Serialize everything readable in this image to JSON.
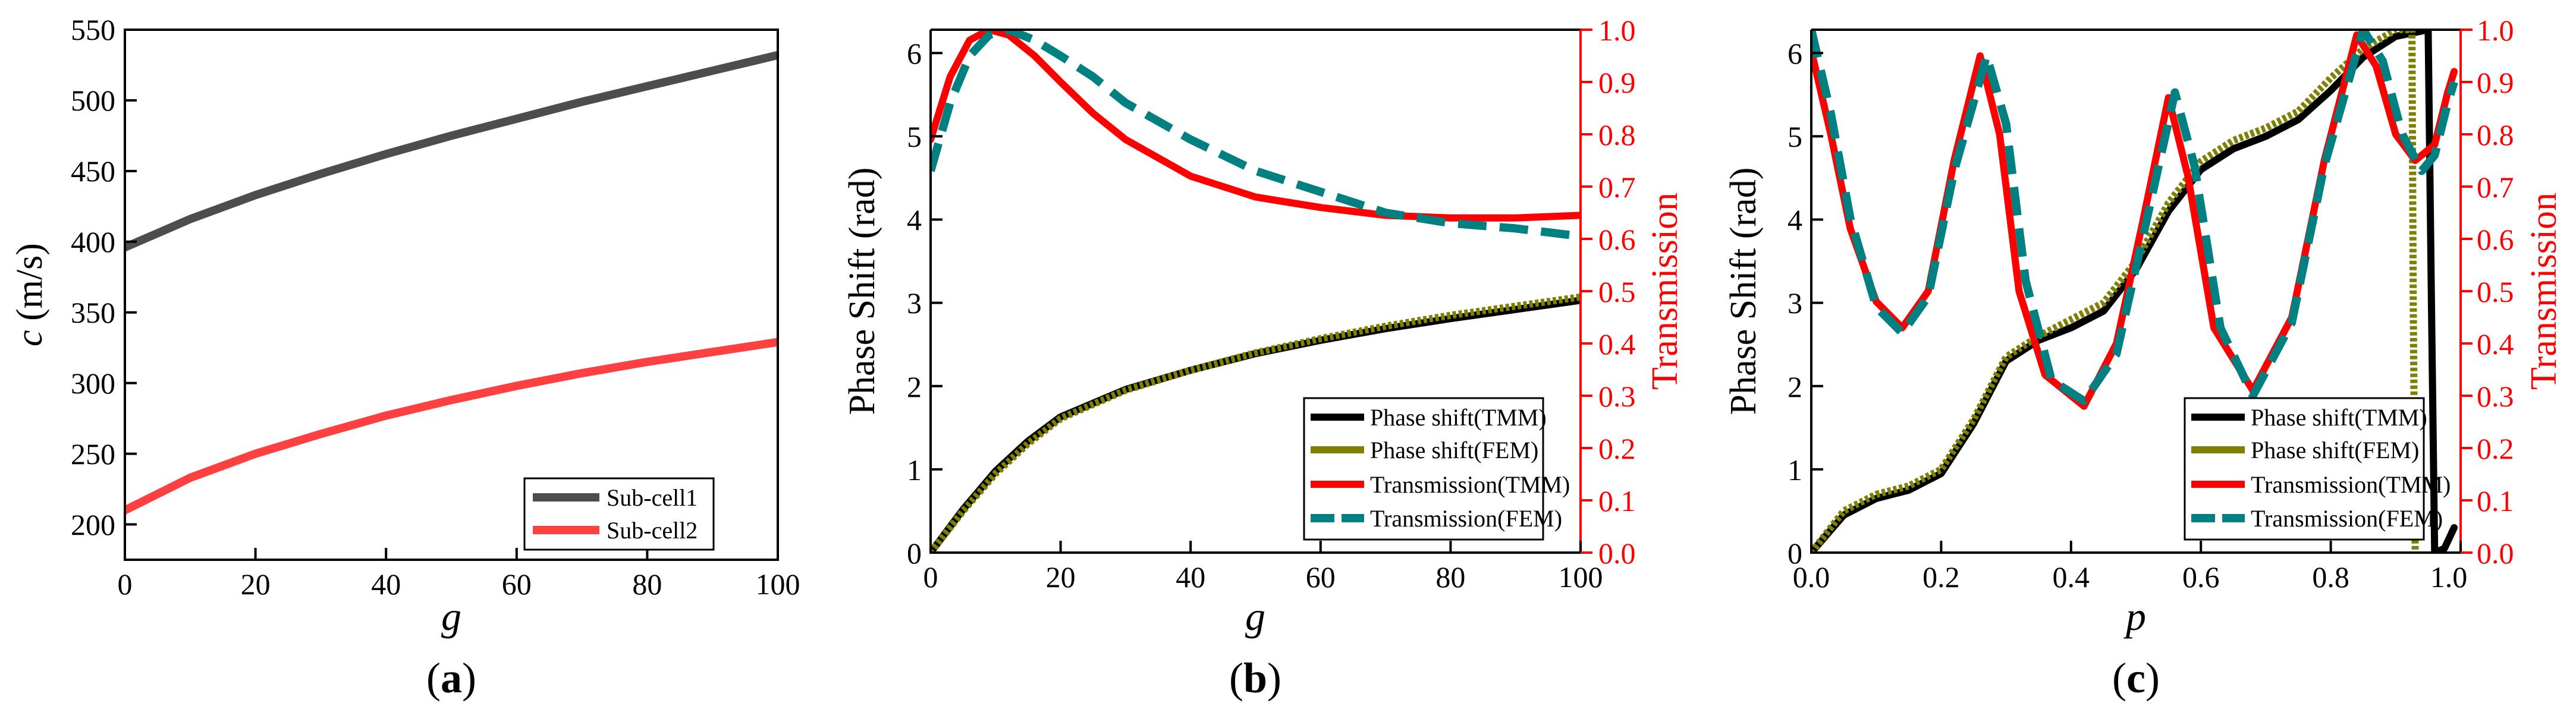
{
  "chart_data": [
    {
      "type": "line",
      "panel_label": "a",
      "xlabel": "g",
      "ylabel_var": "c",
      "ylabel_unit": " (m/s)",
      "xlim": [
        0,
        100
      ],
      "ylim": [
        175,
        550
      ],
      "x_ticks": [
        0,
        20,
        40,
        60,
        80,
        100
      ],
      "y_ticks": [
        200,
        250,
        300,
        350,
        400,
        450,
        500,
        550
      ],
      "legend_position": "bottom-right",
      "colors": {
        "sub_cell1": "#4d4d4d",
        "sub_cell2": "#ff4040"
      },
      "series": [
        {
          "name": "Sub-cell1",
          "x": [
            0,
            10,
            20,
            30,
            40,
            50,
            60,
            70,
            80,
            90,
            100
          ],
          "values": [
            396,
            416,
            433,
            448,
            462,
            475,
            487,
            499,
            510,
            521,
            532
          ]
        },
        {
          "name": "Sub-cell2",
          "x": [
            0,
            10,
            20,
            30,
            40,
            50,
            60,
            70,
            80,
            90,
            100
          ],
          "values": [
            210,
            233,
            250,
            264,
            277,
            288,
            298,
            307,
            315,
            322,
            329
          ]
        }
      ]
    },
    {
      "type": "line",
      "panel_label": "b",
      "xlabel": "g",
      "ylabel": "Phase Shift (rad)",
      "ylabel_right": "Transmission",
      "xlim": [
        0,
        100
      ],
      "ylim": [
        0,
        6.28
      ],
      "ylim_right": [
        0,
        1
      ],
      "x_ticks": [
        0,
        20,
        40,
        60,
        80,
        100
      ],
      "y_ticks": [
        0,
        1,
        2,
        3,
        4,
        5,
        6
      ],
      "y_ticks_right": [
        "0.0",
        "0.1",
        "0.2",
        "0.3",
        "0.4",
        "0.5",
        "0.6",
        "0.7",
        "0.8",
        "0.9",
        "1.0"
      ],
      "legend_position": "bottom-right",
      "colors": {
        "phase_tmm": "#000000",
        "phase_fem": "#808000",
        "trans_tmm": "#ff0000",
        "trans_fem": "#008080"
      },
      "series": [
        {
          "name": "Phase shift(TMM)",
          "axis": "left",
          "x": [
            0,
            5,
            10,
            15,
            20,
            30,
            40,
            50,
            60,
            70,
            80,
            90,
            100
          ],
          "values": [
            0.0,
            0.52,
            0.98,
            1.34,
            1.63,
            1.96,
            2.19,
            2.39,
            2.55,
            2.69,
            2.81,
            2.92,
            3.03
          ]
        },
        {
          "name": "Phase shift(FEM)",
          "axis": "left",
          "x": [
            0,
            5,
            10,
            15,
            20,
            30,
            40,
            50,
            60,
            70,
            80,
            90,
            100
          ],
          "values": [
            0.0,
            0.5,
            0.95,
            1.31,
            1.61,
            1.95,
            2.19,
            2.4,
            2.57,
            2.72,
            2.85,
            2.96,
            3.07
          ]
        },
        {
          "name": "Transmission(TMM)",
          "axis": "right",
          "x": [
            0,
            3,
            6,
            9,
            12,
            16,
            20,
            25,
            30,
            40,
            50,
            60,
            70,
            80,
            90,
            100
          ],
          "values": [
            0.79,
            0.91,
            0.98,
            1.0,
            0.99,
            0.95,
            0.9,
            0.84,
            0.79,
            0.72,
            0.68,
            0.66,
            0.645,
            0.64,
            0.64,
            0.645
          ]
        },
        {
          "name": "Transmission(FEM)",
          "axis": "right",
          "x": [
            0,
            3,
            6,
            9,
            12,
            16,
            20,
            25,
            30,
            40,
            50,
            60,
            70,
            80,
            90,
            100
          ],
          "values": [
            0.73,
            0.86,
            0.95,
            0.99,
            1.0,
            0.98,
            0.95,
            0.91,
            0.86,
            0.79,
            0.73,
            0.69,
            0.65,
            0.63,
            0.62,
            0.605
          ]
        }
      ]
    },
    {
      "type": "line",
      "panel_label": "c",
      "xlabel": "p",
      "ylabel": "Phase Shift (rad)",
      "ylabel_right": "Transmission",
      "xlim": [
        0,
        1
      ],
      "ylim": [
        0,
        6.28
      ],
      "ylim_right": [
        0,
        1
      ],
      "x_ticks": [
        "0.0",
        "0.2",
        "0.4",
        "0.6",
        "0.8",
        "1.0"
      ],
      "y_ticks": [
        0,
        1,
        2,
        3,
        4,
        5,
        6
      ],
      "y_ticks_right": [
        "0.0",
        "0.1",
        "0.2",
        "0.3",
        "0.4",
        "0.5",
        "0.6",
        "0.7",
        "0.8",
        "0.9",
        "1.0"
      ],
      "legend_position": "bottom-right",
      "colors": {
        "phase_tmm": "#000000",
        "phase_fem": "#808000",
        "trans_tmm": "#ff0000",
        "trans_fem": "#008080"
      },
      "series": [
        {
          "name": "Phase shift(TMM)",
          "axis": "left",
          "x": [
            0,
            0.05,
            0.1,
            0.15,
            0.2,
            0.25,
            0.3,
            0.35,
            0.4,
            0.45,
            0.5,
            0.55,
            0.6,
            0.65,
            0.7,
            0.75,
            0.8,
            0.85,
            0.9,
            0.95,
            0.955,
            0.96,
            0.975,
            0.99
          ],
          "values": [
            0.0,
            0.45,
            0.65,
            0.75,
            0.95,
            1.55,
            2.3,
            2.55,
            2.7,
            2.9,
            3.4,
            4.1,
            4.6,
            4.85,
            5.0,
            5.2,
            5.55,
            5.95,
            6.2,
            6.28,
            3.0,
            0.0,
            0.05,
            0.3
          ]
        },
        {
          "name": "Phase shift(FEM)",
          "axis": "left",
          "x": [
            0,
            0.05,
            0.1,
            0.15,
            0.2,
            0.25,
            0.3,
            0.35,
            0.4,
            0.45,
            0.5,
            0.55,
            0.6,
            0.65,
            0.7,
            0.75,
            0.8,
            0.85,
            0.9,
            0.925,
            0.927,
            0.93
          ],
          "values": [
            0.0,
            0.5,
            0.7,
            0.8,
            1.0,
            1.6,
            2.35,
            2.6,
            2.8,
            3.0,
            3.5,
            4.2,
            4.7,
            4.95,
            5.1,
            5.3,
            5.7,
            6.05,
            6.28,
            6.28,
            3.0,
            0.0
          ]
        },
        {
          "name": "Transmission(TMM)",
          "axis": "right",
          "x": [
            0,
            0.03,
            0.06,
            0.1,
            0.14,
            0.18,
            0.22,
            0.26,
            0.29,
            0.32,
            0.36,
            0.42,
            0.47,
            0.51,
            0.55,
            0.58,
            0.62,
            0.68,
            0.74,
            0.79,
            0.84,
            0.87,
            0.9,
            0.93,
            0.96,
            0.98,
            0.99
          ],
          "values": [
            0.96,
            0.8,
            0.62,
            0.48,
            0.43,
            0.5,
            0.75,
            0.95,
            0.8,
            0.5,
            0.34,
            0.28,
            0.4,
            0.63,
            0.87,
            0.72,
            0.43,
            0.31,
            0.45,
            0.75,
            0.99,
            0.93,
            0.8,
            0.75,
            0.78,
            0.88,
            0.92
          ]
        },
        {
          "name": "Transmission(FEM)",
          "axis": "right",
          "x": [
            0,
            0.03,
            0.06,
            0.1,
            0.14,
            0.18,
            0.22,
            0.27,
            0.3,
            0.33,
            0.37,
            0.42,
            0.47,
            0.51,
            0.56,
            0.59,
            0.63,
            0.68,
            0.74,
            0.79,
            0.85,
            0.88,
            0.91,
            0.94,
            0.96,
            0.98,
            0.99
          ],
          "values": [
            1.0,
            0.84,
            0.64,
            0.47,
            0.42,
            0.49,
            0.73,
            0.95,
            0.82,
            0.52,
            0.33,
            0.29,
            0.38,
            0.6,
            0.88,
            0.74,
            0.43,
            0.3,
            0.44,
            0.74,
            1.0,
            0.94,
            0.8,
            0.73,
            0.76,
            0.86,
            0.9
          ]
        }
      ]
    }
  ]
}
